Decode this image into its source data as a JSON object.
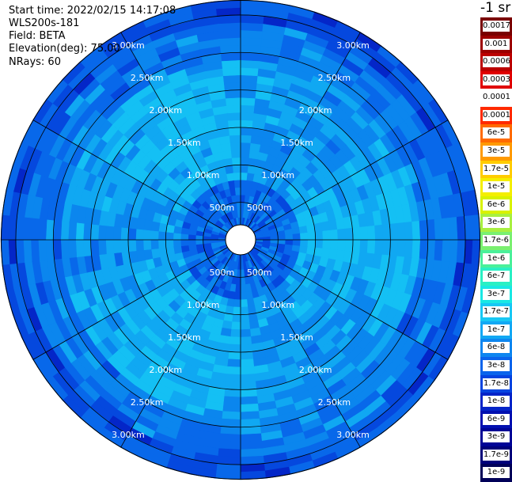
{
  "header": {
    "start_time": "Start time: 2022/02/15 14:17:08",
    "instrument": "WLS200s-181",
    "field": "Field: BETA",
    "elevation": "Elevation(deg): 75.00",
    "nrays": "NRays: 60"
  },
  "units_label": "-1 sr",
  "colorbar": [
    {
      "label": "0.0017",
      "color": "#7a0000"
    },
    {
      "label": "0.001",
      "color": "#9c0000"
    },
    {
      "label": "0.0006",
      "color": "#bb0000"
    },
    {
      "label": "0.0003",
      "color": "#e00000"
    },
    {
      "label": "0.00017",
      "color": "#ffffff"
    },
    {
      "label": "0.0001",
      "color": "#ff2a00"
    },
    {
      "label": "6e-5",
      "color": "#ff6a00"
    },
    {
      "label": "3e-5",
      "color": "#ff9a00"
    },
    {
      "label": "1.7e-5",
      "color": "#ffcc00"
    },
    {
      "label": "1e-5",
      "color": "#f4ee00"
    },
    {
      "label": "6e-6",
      "color": "#d8f200"
    },
    {
      "label": "3e-6",
      "color": "#a8f040"
    },
    {
      "label": "1.7e-6",
      "color": "#7af070"
    },
    {
      "label": "1e-6",
      "color": "#4af09a"
    },
    {
      "label": "6e-7",
      "color": "#2af0c4"
    },
    {
      "label": "3e-7",
      "color": "#1ae8e4"
    },
    {
      "label": "1.7e-7",
      "color": "#18c8f4"
    },
    {
      "label": "1e-7",
      "color": "#12a8f4"
    },
    {
      "label": "6e-8",
      "color": "#0e86f0"
    },
    {
      "label": "3e-8",
      "color": "#0a64ec"
    },
    {
      "label": "1.7e-8",
      "color": "#0644e0"
    },
    {
      "label": "1e-8",
      "color": "#0424c8"
    },
    {
      "label": "6e-9",
      "color": "#0210b0"
    },
    {
      "label": "3e-9",
      "color": "#000496"
    },
    {
      "label": "1.7e-9",
      "color": "#00007a"
    },
    {
      "label": "1e-9",
      "color": "#000058"
    }
  ],
  "range_rings": [
    {
      "label": "500m",
      "range_km": 0.5
    },
    {
      "label": "1.00km",
      "range_km": 1.0
    },
    {
      "label": "1.50km",
      "range_km": 1.5
    },
    {
      "label": "2.00km",
      "range_km": 2.0
    },
    {
      "label": "2.50km",
      "range_km": 2.5
    },
    {
      "label": "3.00km",
      "range_km": 3.0
    }
  ],
  "ring_label_bearings_deg": [
    30,
    150,
    210,
    330
  ],
  "spoke_bearings_deg": [
    0,
    30,
    60,
    90,
    120,
    150,
    180,
    210,
    240,
    270,
    300,
    330
  ],
  "max_range_km": 3.2,
  "nrays": 60,
  "palette": {
    "light_cyan": "#14c0f4",
    "cyan": "#10a8f2",
    "mid_blue": "#0b86ee",
    "blue": "#0868ea",
    "dark_blue": "#0548de",
    "deep_blue": "#0426c8",
    "blind_zone": "#ffffff",
    "grid": "#000000"
  }
}
